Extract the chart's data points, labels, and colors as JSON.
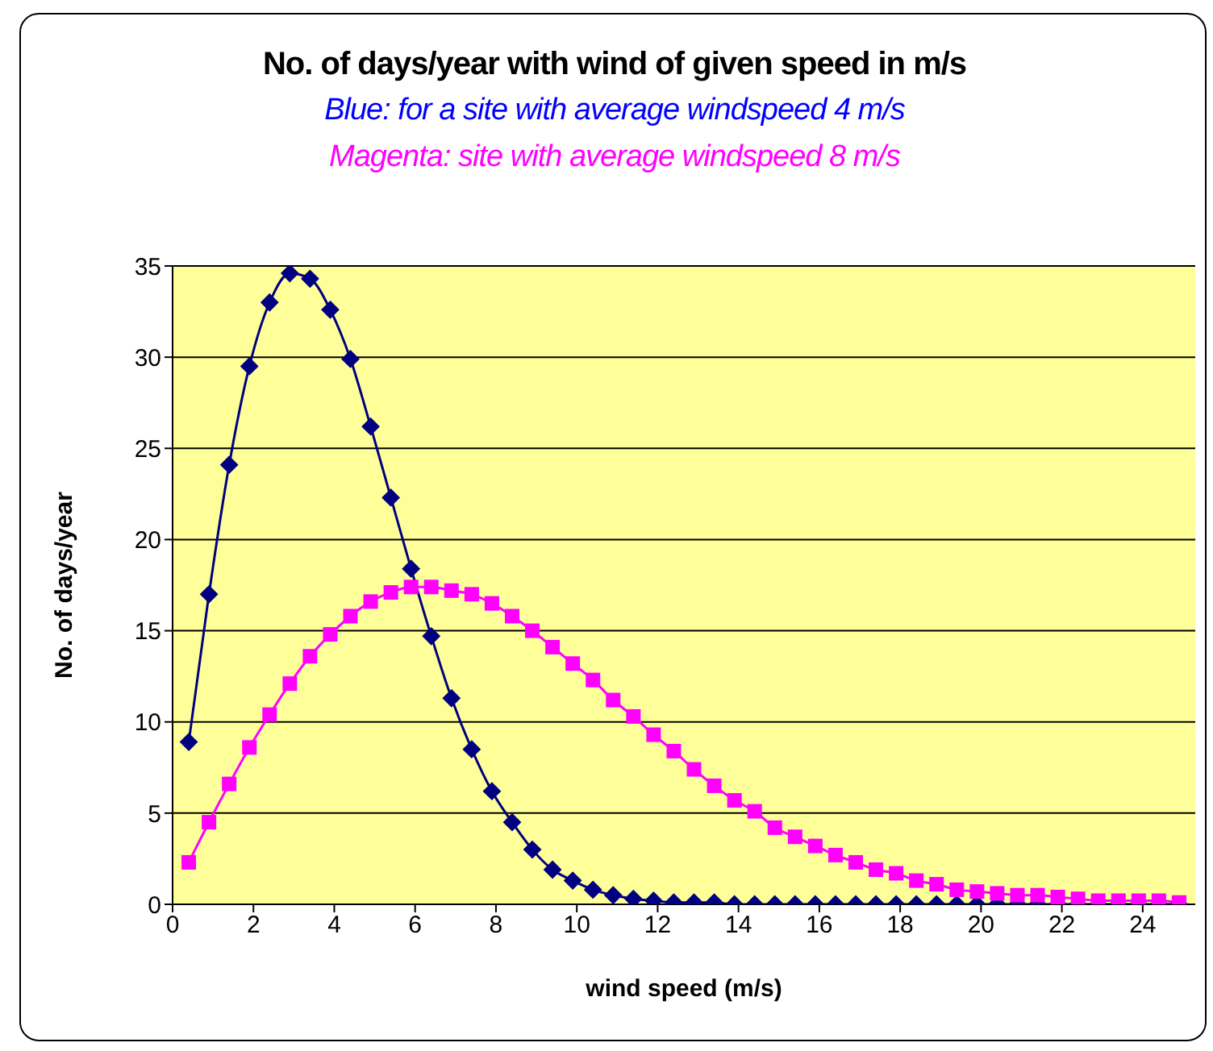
{
  "chart_data": {
    "type": "line",
    "title": "No. of days/year with wind of given speed in m/s",
    "subtitle": "Blue: for a site with average windspeed 4 m/s",
    "annotations": [
      "Magenta: site with average windspeed 8 m/s"
    ],
    "xlabel": "wind speed (m/s)",
    "ylabel": "No. of days/year",
    "x": [
      0.4,
      0.9,
      1.4,
      1.9,
      2.4,
      2.9,
      3.4,
      3.9,
      4.4,
      4.9,
      5.4,
      5.9,
      6.4,
      6.9,
      7.4,
      7.9,
      8.4,
      8.9,
      9.4,
      9.9,
      10.4,
      10.9,
      11.4,
      11.9,
      12.4,
      12.9,
      13.4,
      13.9,
      14.4,
      14.9,
      15.4,
      15.9,
      16.4,
      16.9,
      17.4,
      17.9,
      18.4,
      18.9,
      19.4,
      19.9,
      20.4,
      20.9,
      21.4,
      21.9,
      22.4,
      22.9,
      23.4,
      23.9,
      24.4,
      24.9
    ],
    "series": [
      {
        "color": "#000080",
        "marker": "diamond",
        "values": [
          8.9,
          17.0,
          24.1,
          29.5,
          33.0,
          34.6,
          34.3,
          32.6,
          29.9,
          26.2,
          22.3,
          18.4,
          14.7,
          11.3,
          8.5,
          6.2,
          4.5,
          3.0,
          1.9,
          1.3,
          0.8,
          0.5,
          0.3,
          0.2,
          0.1,
          0.1,
          0.1,
          0,
          0,
          0,
          0,
          0,
          0,
          0,
          0,
          0,
          0,
          0,
          0,
          0,
          0,
          0,
          0,
          0,
          0,
          0,
          0,
          0,
          0,
          0
        ]
      },
      {
        "color": "#ff00ff",
        "marker": "square",
        "values": [
          2.3,
          4.5,
          6.6,
          8.6,
          10.4,
          12.1,
          13.6,
          14.8,
          15.8,
          16.6,
          17.1,
          17.4,
          17.4,
          17.2,
          17.0,
          16.5,
          15.8,
          15.0,
          14.1,
          13.2,
          12.3,
          11.2,
          10.3,
          9.3,
          8.4,
          7.4,
          6.5,
          5.7,
          5.1,
          4.2,
          3.7,
          3.2,
          2.7,
          2.3,
          1.9,
          1.7,
          1.3,
          1.1,
          0.8,
          0.7,
          0.6,
          0.5,
          0.5,
          0.4,
          0.3,
          0.2,
          0.2,
          0.2,
          0.2,
          0.1
        ]
      }
    ],
    "xlim": [
      0,
      25.3
    ],
    "xticks": [
      0,
      2,
      4,
      6,
      8,
      10,
      12,
      14,
      16,
      18,
      20,
      22,
      24
    ],
    "ylim": [
      0,
      35
    ],
    "yticks": [
      0,
      5,
      10,
      15,
      20,
      25,
      30,
      35
    ],
    "grid": "y"
  }
}
